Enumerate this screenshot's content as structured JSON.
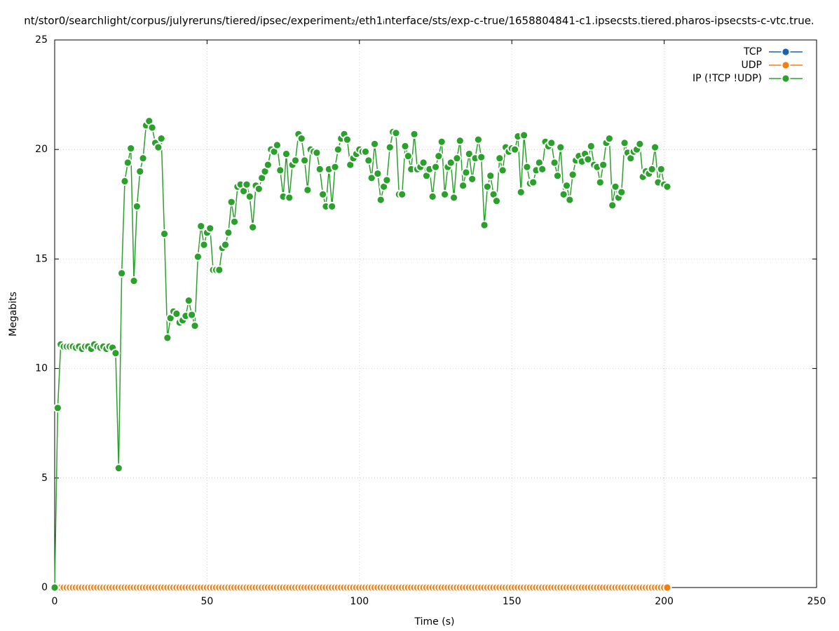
{
  "chart_data": {
    "type": "line",
    "title": "nt/stor0/searchlight/corpus/julyreruns/tiered/ipsec/experiment₂/eth1ᵢnterface/sts/exp-c-true/1658804841-c1.ipsecsts.tiered.pharos-ipsecsts-c-vtc.true.",
    "xlabel": "Time (s)",
    "ylabel": "Megabits",
    "xlim": [
      0,
      250
    ],
    "xticks": [
      0,
      50,
      100,
      150,
      200,
      250
    ],
    "ylim": [
      0,
      25
    ],
    "yticks": [
      0,
      5,
      10,
      15,
      20,
      25
    ],
    "grid": true,
    "legend": "upper right",
    "x": [
      0,
      1,
      2,
      3,
      4,
      5,
      6,
      7,
      8,
      9,
      10,
      11,
      12,
      13,
      14,
      15,
      16,
      17,
      18,
      19,
      20,
      21,
      22,
      23,
      24,
      25,
      26,
      27,
      28,
      29,
      30,
      31,
      32,
      33,
      34,
      35,
      36,
      37,
      38,
      39,
      40,
      41,
      42,
      43,
      44,
      45,
      46,
      47,
      48,
      49,
      50,
      51,
      52,
      53,
      54,
      55,
      56,
      57,
      58,
      59,
      60,
      61,
      62,
      63,
      64,
      65,
      66,
      67,
      68,
      69,
      70,
      71,
      72,
      73,
      74,
      75,
      76,
      77,
      78,
      79,
      80,
      81,
      82,
      83,
      84,
      85,
      86,
      87,
      88,
      89,
      90,
      91,
      92,
      93,
      94,
      95,
      96,
      97,
      98,
      99,
      100,
      101,
      102,
      103,
      104,
      105,
      106,
      107,
      108,
      109,
      110,
      111,
      112,
      113,
      114,
      115,
      116,
      117,
      118,
      119,
      120,
      121,
      122,
      123,
      124,
      125,
      126,
      127,
      128,
      129,
      130,
      131,
      132,
      133,
      134,
      135,
      136,
      137,
      138,
      139,
      140,
      141,
      142,
      143,
      144,
      145,
      146,
      147,
      148,
      149,
      150,
      151,
      152,
      153,
      154,
      155,
      156,
      157,
      158,
      159,
      160,
      161,
      162,
      163,
      164,
      165,
      166,
      167,
      168,
      169,
      170,
      171,
      172,
      173,
      174,
      175,
      176,
      177,
      178,
      179,
      180,
      181,
      182,
      183,
      184,
      185,
      186,
      187,
      188,
      189,
      190,
      191,
      192,
      193,
      194,
      195,
      196,
      197,
      198,
      199,
      200,
      201
    ],
    "series": [
      {
        "name": "TCP",
        "color": "#1a63b0",
        "values": [
          0,
          0,
          0,
          0,
          0,
          0,
          0,
          0,
          0,
          0,
          0,
          0,
          0,
          0,
          0,
          0,
          0,
          0,
          0,
          0,
          0,
          0,
          0,
          0,
          0,
          0,
          0,
          0,
          0,
          0,
          0,
          0,
          0,
          0,
          0,
          0,
          0,
          0,
          0,
          0,
          0,
          0,
          0,
          0,
          0,
          0,
          0,
          0,
          0,
          0,
          0,
          0,
          0,
          0,
          0,
          0,
          0,
          0,
          0,
          0,
          0,
          0,
          0,
          0,
          0,
          0,
          0,
          0,
          0,
          0,
          0,
          0,
          0,
          0,
          0,
          0,
          0,
          0,
          0,
          0,
          0,
          0,
          0,
          0,
          0,
          0,
          0,
          0,
          0,
          0,
          0,
          0,
          0,
          0,
          0,
          0,
          0,
          0,
          0,
          0,
          0,
          0,
          0,
          0,
          0,
          0,
          0,
          0,
          0,
          0,
          0,
          0,
          0,
          0,
          0,
          0,
          0,
          0,
          0,
          0,
          0,
          0,
          0,
          0,
          0,
          0,
          0,
          0,
          0,
          0,
          0,
          0,
          0,
          0,
          0,
          0,
          0,
          0,
          0,
          0,
          0,
          0,
          0,
          0,
          0,
          0,
          0,
          0,
          0,
          0,
          0,
          0,
          0,
          0,
          0,
          0,
          0,
          0,
          0,
          0,
          0,
          0,
          0,
          0,
          0,
          0,
          0,
          0,
          0,
          0,
          0,
          0,
          0,
          0,
          0,
          0,
          0,
          0,
          0,
          0,
          0,
          0,
          0,
          0,
          0,
          0,
          0,
          0,
          0,
          0,
          0,
          0,
          0,
          0,
          0,
          0,
          0,
          0,
          0,
          0,
          0,
          0
        ]
      },
      {
        "name": "UDP",
        "color": "#f07f14",
        "values": [
          0,
          0,
          0,
          0,
          0,
          0,
          0,
          0,
          0,
          0,
          0,
          0,
          0,
          0,
          0,
          0,
          0,
          0,
          0,
          0,
          0,
          0,
          0,
          0,
          0,
          0,
          0,
          0,
          0,
          0,
          0,
          0,
          0,
          0,
          0,
          0,
          0,
          0,
          0,
          0,
          0,
          0,
          0,
          0,
          0,
          0,
          0,
          0,
          0,
          0,
          0,
          0,
          0,
          0,
          0,
          0,
          0,
          0,
          0,
          0,
          0,
          0,
          0,
          0,
          0,
          0,
          0,
          0,
          0,
          0,
          0,
          0,
          0,
          0,
          0,
          0,
          0,
          0,
          0,
          0,
          0,
          0,
          0,
          0,
          0,
          0,
          0,
          0,
          0,
          0,
          0,
          0,
          0,
          0,
          0,
          0,
          0,
          0,
          0,
          0,
          0,
          0,
          0,
          0,
          0,
          0,
          0,
          0,
          0,
          0,
          0,
          0,
          0,
          0,
          0,
          0,
          0,
          0,
          0,
          0,
          0,
          0,
          0,
          0,
          0,
          0,
          0,
          0,
          0,
          0,
          0,
          0,
          0,
          0,
          0,
          0,
          0,
          0,
          0,
          0,
          0,
          0,
          0,
          0,
          0,
          0,
          0,
          0,
          0,
          0,
          0,
          0,
          0,
          0,
          0,
          0,
          0,
          0,
          0,
          0,
          0,
          0,
          0,
          0,
          0,
          0,
          0,
          0,
          0,
          0,
          0,
          0,
          0,
          0,
          0,
          0,
          0,
          0,
          0,
          0,
          0,
          0,
          0,
          0,
          0,
          0,
          0,
          0,
          0,
          0,
          0,
          0,
          0,
          0,
          0,
          0,
          0,
          0,
          0,
          0,
          0,
          0
        ]
      },
      {
        "name": "IP (!TCP  !UDP)",
        "color": "#2ca02c",
        "values": [
          0,
          8.2,
          11.1,
          11.0,
          11.0,
          11.0,
          11.0,
          10.95,
          11.0,
          10.9,
          11.0,
          11.0,
          10.9,
          11.1,
          11.0,
          10.95,
          11.0,
          10.9,
          11.0,
          10.95,
          10.7,
          5.45,
          14.35,
          18.55,
          19.4,
          20.05,
          14.0,
          17.4,
          19.0,
          19.6,
          21.1,
          21.3,
          21.0,
          20.3,
          20.1,
          20.5,
          16.15,
          11.4,
          12.3,
          12.6,
          12.5,
          12.1,
          12.2,
          12.4,
          13.1,
          12.45,
          11.95,
          15.1,
          16.5,
          15.65,
          16.2,
          16.4,
          14.5,
          14.5,
          14.5,
          15.5,
          15.65,
          16.2,
          17.6,
          16.7,
          18.3,
          18.4,
          18.1,
          18.4,
          17.85,
          16.45,
          18.35,
          18.2,
          18.7,
          19.0,
          19.3,
          20.0,
          19.9,
          20.2,
          19.05,
          17.85,
          19.8,
          17.8,
          19.3,
          19.5,
          20.7,
          20.5,
          19.5,
          18.15,
          20.0,
          19.9,
          19.85,
          19.1,
          17.95,
          17.4,
          19.1,
          17.4,
          19.2,
          20.0,
          20.5,
          20.7,
          20.45,
          19.3,
          19.6,
          19.8,
          20.0,
          19.9,
          19.9,
          19.5,
          18.7,
          20.25,
          18.9,
          17.7,
          18.3,
          18.6,
          20.1,
          20.8,
          20.75,
          17.95,
          17.95,
          20.15,
          19.7,
          19.1,
          20.7,
          19.1,
          19.2,
          19.4,
          18.8,
          19.1,
          17.85,
          19.2,
          19.7,
          20.35,
          17.95,
          19.2,
          19.4,
          17.8,
          19.6,
          20.4,
          18.35,
          18.95,
          19.8,
          18.65,
          19.6,
          20.45,
          19.65,
          16.55,
          18.3,
          18.8,
          17.95,
          17.65,
          19.6,
          19.05,
          20.1,
          19.9,
          20.05,
          20.0,
          20.6,
          18.05,
          20.65,
          19.2,
          18.45,
          18.5,
          19.05,
          19.4,
          19.1,
          20.35,
          20.15,
          20.3,
          19.4,
          18.8,
          20.1,
          17.95,
          18.35,
          17.7,
          18.85,
          19.5,
          19.7,
          19.45,
          19.8,
          19.55,
          20.15,
          19.3,
          19.2,
          18.5,
          19.3,
          20.3,
          20.5,
          17.45,
          18.3,
          17.8,
          18.05,
          20.3,
          19.85,
          19.6,
          19.9,
          20.0,
          20.25,
          18.75,
          19.0,
          18.9,
          19.1,
          20.1,
          18.5,
          19.1,
          18.4,
          18.3
        ]
      }
    ]
  }
}
